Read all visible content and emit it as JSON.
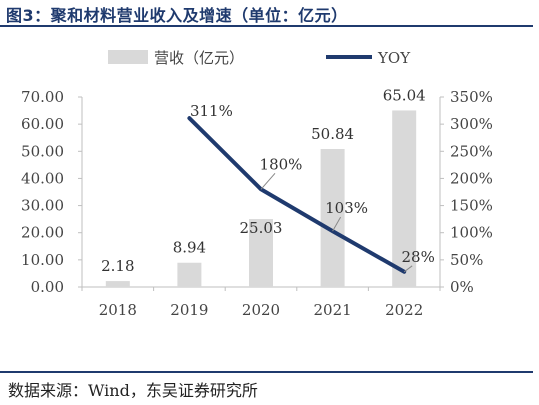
{
  "header": {
    "title": "图3：聚和材料营业收入及增速（单位：亿元）"
  },
  "footer": {
    "source": "数据来源：Wind，东吴证券研究所"
  },
  "chart_data": {
    "type": "bar",
    "categories": [
      "2018",
      "2019",
      "2020",
      "2021",
      "2022"
    ],
    "series": [
      {
        "name": "营收（亿元）",
        "type": "bar",
        "axis": "left",
        "color": "#d9d9d9",
        "values": [
          2.18,
          8.94,
          25.03,
          50.84,
          65.04
        ],
        "labels": [
          "2.18",
          "8.94",
          "25.03",
          "50.84",
          "65.04"
        ]
      },
      {
        "name": "YOY",
        "type": "line",
        "axis": "right",
        "color": "#1f3a6e",
        "x": [
          "2019",
          "2020",
          "2021",
          "2022"
        ],
        "values": [
          311,
          180,
          103,
          28
        ],
        "labels": [
          "311%",
          "180%",
          "103%",
          "28%"
        ]
      }
    ],
    "y_left": {
      "range": [
        0,
        70
      ],
      "ticks": [
        "0.00",
        "10.00",
        "20.00",
        "30.00",
        "40.00",
        "50.00",
        "60.00",
        "70.00"
      ]
    },
    "y_right": {
      "range": [
        0,
        350
      ],
      "ticks": [
        "0%",
        "50%",
        "100%",
        "150%",
        "200%",
        "250%",
        "300%",
        "350%"
      ]
    },
    "legend": {
      "position": "top"
    },
    "grid": false
  }
}
